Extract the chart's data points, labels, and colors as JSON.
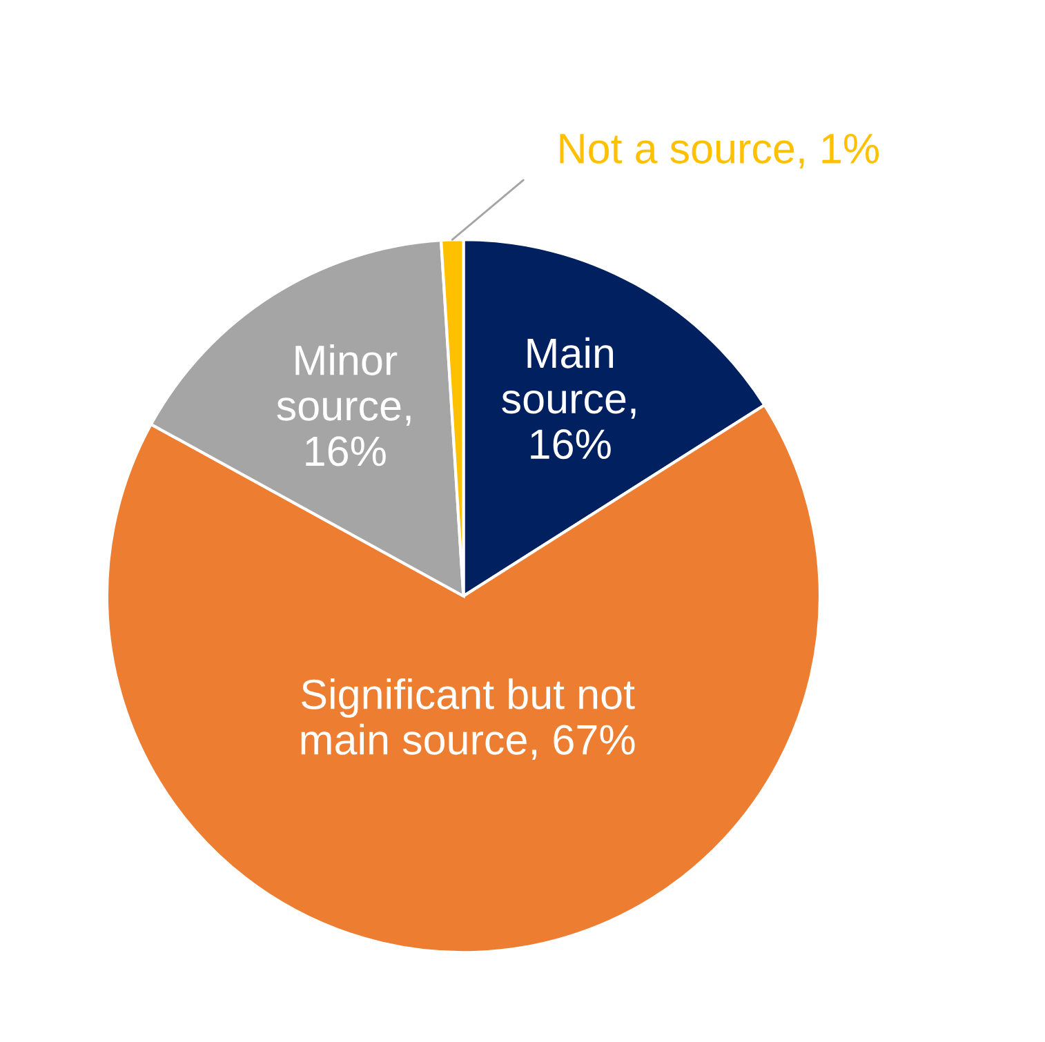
{
  "chart_data": {
    "type": "pie",
    "categories": [
      "Main\nsource,\n16%",
      "Significant but not\nmain source, 67%",
      "Minor\nsource,\n16%",
      "Not a source, 1%"
    ],
    "values": [
      16,
      67,
      16,
      1
    ],
    "colors": [
      "#002060",
      "#ed7d31",
      "#a5a5a5",
      "#ffc000"
    ],
    "legend": false
  }
}
